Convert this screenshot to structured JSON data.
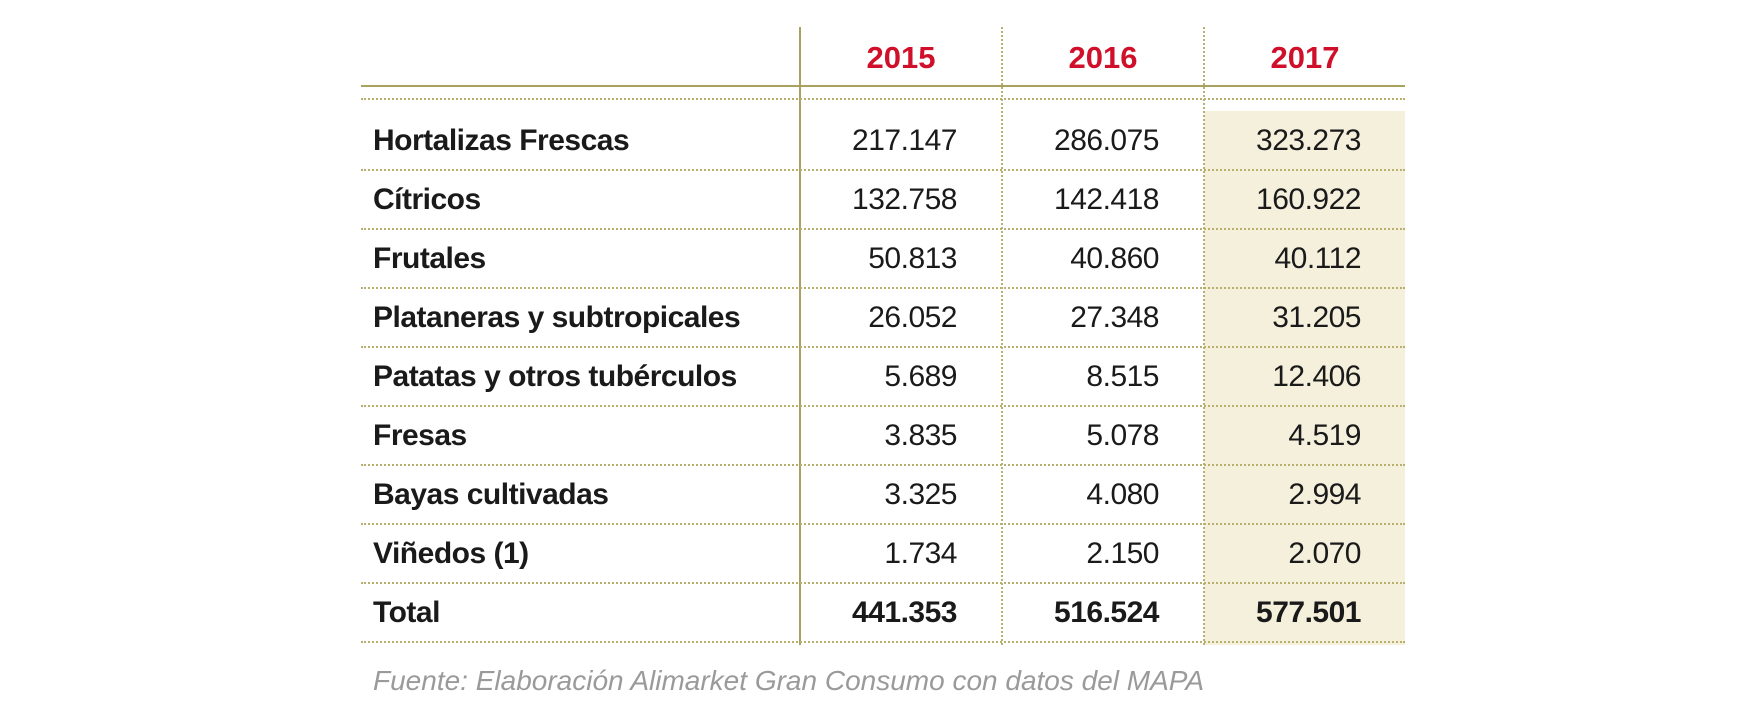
{
  "table": {
    "columns": [
      "2015",
      "2016",
      "2017"
    ],
    "rows": [
      {
        "label": "Hortalizas Frescas",
        "values": [
          "217.147",
          "286.075",
          "323.273"
        ]
      },
      {
        "label": "Cítricos",
        "values": [
          "132.758",
          "142.418",
          "160.922"
        ]
      },
      {
        "label": "Frutales",
        "values": [
          "50.813",
          "40.860",
          "40.112"
        ]
      },
      {
        "label": "Plataneras y subtropicales",
        "values": [
          "26.052",
          "27.348",
          "31.205"
        ]
      },
      {
        "label": "Patatas y otros tubérculos",
        "values": [
          "5.689",
          "8.515",
          "12.406"
        ]
      },
      {
        "label": "Fresas",
        "values": [
          "3.835",
          "5.078",
          "4.519"
        ]
      },
      {
        "label": "Bayas cultivadas",
        "values": [
          "3.325",
          "4.080",
          "2.994"
        ]
      },
      {
        "label": "Viñedos (1)",
        "values": [
          "1.734",
          "2.150",
          "2.070"
        ]
      }
    ],
    "total": {
      "label": "Total",
      "values": [
        "441.353",
        "516.524",
        "577.501"
      ]
    }
  },
  "source": "Fuente: Elaboración Alimarket Gran Consumo con datos del MAPA"
}
